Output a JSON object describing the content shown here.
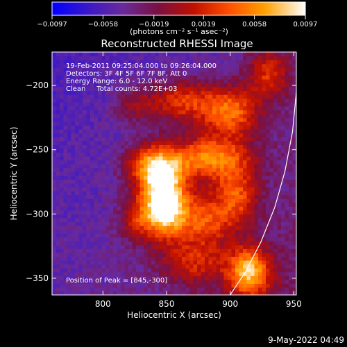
{
  "chart_data": {
    "type": "heatmap",
    "title": "Reconstructed RHESSI Image",
    "xlabel": "Heliocentric X (arcsec)",
    "ylabel": "Heliocentric Y (arcsec)",
    "xlim": [
      760,
      952
    ],
    "ylim": [
      -363,
      -174
    ],
    "x_ticks": [
      800,
      850,
      900,
      950
    ],
    "y_ticks": [
      -200,
      -250,
      -300,
      -350
    ],
    "x_tick_labels": [
      "800",
      "850",
      "900",
      "950"
    ],
    "y_tick_labels": [
      "−200",
      "−250",
      "−300",
      "−350"
    ],
    "colorbar": {
      "range": [
        -0.0097,
        0.0097
      ],
      "ticks": [
        -0.0097,
        -0.0058,
        -0.0019,
        0.0019,
        0.0058,
        0.0097
      ],
      "tick_labels": [
        "−0.0097",
        "−0.0058",
        "−0.0019",
        "0.0019",
        "0.0058",
        "0.0097"
      ],
      "unit_label": "(photons cm⁻² s⁻¹ asec⁻²)",
      "colors": [
        "#0000ff",
        "#3a18c8",
        "#6a2a9a",
        "#7a1040",
        "#c01000",
        "#ff5000",
        "#ffa000",
        "#ffffff"
      ]
    },
    "annotations": [
      "19-Feb-2011 09:25:04.000 to 09:26:04.000",
      "Detectors: 3F 4F 5F 6F 7F 8F, Att 0",
      "Energy Range: 6.0 - 12.0 keV",
      "Clean     Total counts: 4.72E+03"
    ],
    "peak_label": "Position of Peak = [845,-300]",
    "peak_position": [
      845,
      -300
    ],
    "limb_curve": [
      [
        900,
        -363
      ],
      [
        912,
        -345
      ],
      [
        924,
        -322
      ],
      [
        935,
        -295
      ],
      [
        943,
        -267
      ],
      [
        949,
        -236
      ],
      [
        952,
        -205
      ],
      [
        953,
        -185
      ]
    ],
    "image_blobs": [
      {
        "x": 848,
        "y": -292,
        "amp": 1.35,
        "sx": 13,
        "sy": 18
      },
      {
        "x": 840,
        "y": -262,
        "amp": 0.85,
        "sx": 15,
        "sy": 12
      },
      {
        "x": 884,
        "y": -256,
        "amp": 0.8,
        "sx": 22,
        "sy": 12
      },
      {
        "x": 900,
        "y": -220,
        "amp": 0.75,
        "sx": 16,
        "sy": 14
      },
      {
        "x": 862,
        "y": -212,
        "amp": 0.6,
        "sx": 18,
        "sy": 12
      },
      {
        "x": 930,
        "y": -190,
        "amp": 0.55,
        "sx": 12,
        "sy": 14
      },
      {
        "x": 915,
        "y": -345,
        "amp": 0.95,
        "sx": 12,
        "sy": 14
      },
      {
        "x": 880,
        "y": -305,
        "amp": 0.6,
        "sx": 15,
        "sy": 14
      },
      {
        "x": 905,
        "y": -285,
        "amp": 0.6,
        "sx": 12,
        "sy": 16
      },
      {
        "x": 872,
        "y": -338,
        "amp": 0.45,
        "sx": 18,
        "sy": 12
      },
      {
        "x": 825,
        "y": -305,
        "amp": 0.35,
        "sx": 10,
        "sy": 12
      },
      {
        "x": 825,
        "y": -215,
        "amp": 0.35,
        "sx": 12,
        "sy": 10
      }
    ]
  },
  "footer": {
    "date": "9-May-2022 04:49"
  }
}
